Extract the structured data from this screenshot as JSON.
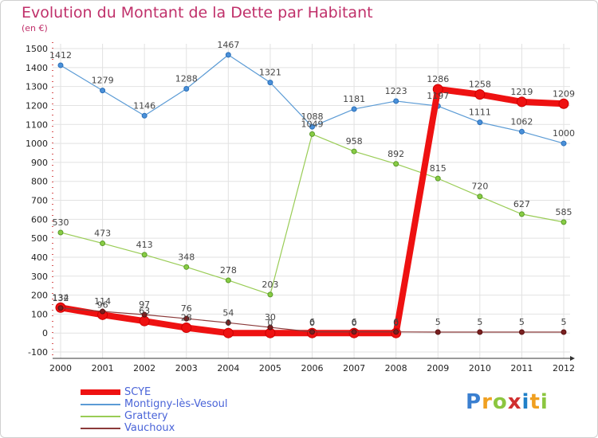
{
  "header": {
    "title": "Evolution du Montant de la Dette par Habitant",
    "subtitle": "(en €)"
  },
  "logo": {
    "text": "Proxiti",
    "colors": [
      "#3a7fd0",
      "#f0a020",
      "#8cc63f",
      "#d03030",
      "#2080c8",
      "#f0a020",
      "#8cc63f"
    ]
  },
  "legend": {
    "items": [
      {
        "label": "SCYE",
        "color": "#ee1111"
      },
      {
        "label": "Montigny-lès-Vesoul",
        "color": "#5b9bd5"
      },
      {
        "label": "Grattery",
        "color": "#99cc55"
      },
      {
        "label": "Vauchoux",
        "color": "#8b3a3a"
      }
    ]
  },
  "chart_data": {
    "type": "line",
    "title": "Evolution du Montant de la Dette par Habitant",
    "subtitle": "(en €)",
    "xlabel": "",
    "ylabel": "",
    "x": [
      "2000",
      "2001",
      "2002",
      "2003",
      "2004",
      "2005",
      "2006",
      "2007",
      "2008",
      "2009",
      "2010",
      "2011",
      "2012"
    ],
    "ylim": [
      -100,
      1500
    ],
    "yticks": [
      "-100",
      "0",
      "100",
      "200",
      "300",
      "400",
      "500",
      "600",
      "700",
      "800",
      "900",
      "1000",
      "1100",
      "1200",
      "1300",
      "1400",
      "1500"
    ],
    "grid": true,
    "series": [
      {
        "name": "SCYE",
        "color": "#ee1111",
        "values": [
          134,
          96,
          63,
          28,
          0,
          0,
          0,
          0,
          0,
          1286,
          1258,
          1219,
          1209
        ]
      },
      {
        "name": "Montigny-lès-Vesoul",
        "color": "#5b9bd5",
        "values": [
          1412,
          1279,
          1146,
          1288,
          1467,
          1321,
          1088,
          1181,
          1223,
          1197,
          1111,
          1062,
          1000
        ]
      },
      {
        "name": "Grattery",
        "color": "#99cc55",
        "values": [
          530,
          473,
          413,
          348,
          278,
          203,
          1049,
          958,
          892,
          815,
          720,
          627,
          585
        ]
      },
      {
        "name": "Vauchoux",
        "color": "#8b3a3a",
        "values": [
          132,
          114,
          97,
          76,
          54,
          30,
          6,
          6,
          6,
          5,
          5,
          5,
          5
        ]
      }
    ]
  }
}
